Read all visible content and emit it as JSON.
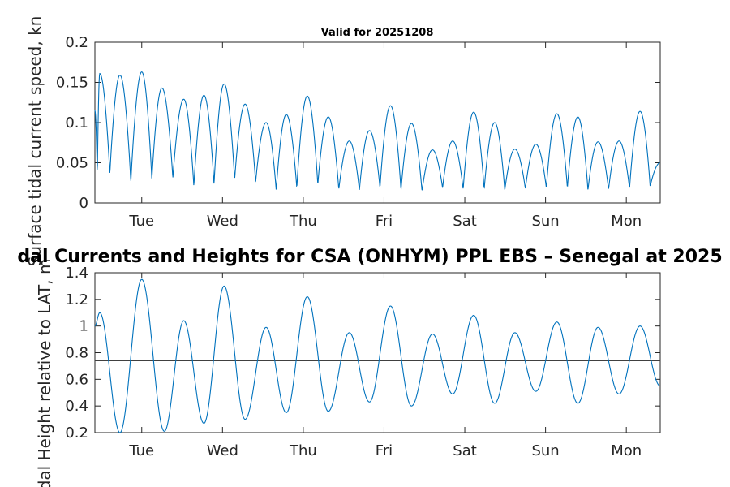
{
  "figure_title": "dal Currents and Heights for CSA (ONHYM) PPL EBS  – Senegal at 2025",
  "chart_data": [
    {
      "id": "speed",
      "type": "line",
      "title": "Valid for 20251208",
      "xlabel": "",
      "ylabel": "Surface tidal current speed, kn",
      "ylim": [
        0,
        0.2
      ],
      "yticks": [
        "0",
        "0.05",
        "0.1",
        "0.15",
        "0.2"
      ],
      "ytick_values": [
        0,
        0.05,
        0.1,
        0.15,
        0.2
      ],
      "xlim_days": [
        0,
        7
      ],
      "xtick_days": [
        0.58,
        1.58,
        2.58,
        3.58,
        4.58,
        5.58,
        6.58
      ],
      "xticks": [
        "Tue",
        "Wed",
        "Thu",
        "Fri",
        "Sat",
        "Sun",
        "Mon"
      ],
      "color": "#0072BD",
      "series": [
        {
          "name": "current speed",
          "x": [
            0.0,
            0.06,
            0.31,
            0.58,
            0.83,
            1.1,
            1.35,
            1.6,
            1.86,
            2.12,
            2.37,
            2.63,
            2.89,
            3.15,
            3.4,
            3.66,
            3.92,
            4.18,
            4.43,
            4.69,
            4.95,
            5.2,
            5.46,
            5.72,
            5.98,
            6.23,
            6.49,
            6.75,
            7.0
          ],
          "y": [
            0.115,
            0.161,
            0.159,
            0.163,
            0.143,
            0.129,
            0.134,
            0.148,
            0.123,
            0.1,
            0.11,
            0.133,
            0.107,
            0.077,
            0.09,
            0.121,
            0.099,
            0.066,
            0.077,
            0.113,
            0.1,
            0.067,
            0.073,
            0.111,
            0.107,
            0.076,
            0.077,
            0.114,
            0.05
          ],
          "minima": [
            0.03,
            0.035,
            0.025,
            0.028,
            0.03,
            0.02,
            0.022,
            0.028,
            0.025,
            0.015,
            0.018,
            0.022,
            0.016,
            0.015,
            0.018,
            0.015,
            0.014,
            0.018,
            0.016,
            0.016,
            0.015,
            0.017,
            0.018,
            0.018,
            0.015,
            0.016,
            0.017,
            0.02
          ]
        }
      ]
    },
    {
      "id": "height",
      "type": "line",
      "title": "",
      "xlabel": "",
      "ylabel": "Tidal Height relative to LAT, m",
      "ylim": [
        0.2,
        1.4
      ],
      "yticks": [
        "0.2",
        "0.4",
        "0.6",
        "0.8",
        "1",
        "1.2",
        "1.4"
      ],
      "ytick_values": [
        0.2,
        0.4,
        0.6,
        0.8,
        1.0,
        1.2,
        1.4
      ],
      "xlim_days": [
        0,
        7
      ],
      "xtick_days": [
        0.58,
        1.58,
        2.58,
        3.58,
        4.58,
        5.58,
        6.58
      ],
      "xticks": [
        "Tue",
        "Wed",
        "Thu",
        "Fri",
        "Sat",
        "Sun",
        "Mon"
      ],
      "color": "#0072BD",
      "reference_line": 0.74,
      "reference_color": "#404040",
      "series": [
        {
          "name": "tidal height",
          "extrema_x": [
            0.0,
            0.06,
            0.31,
            0.58,
            0.86,
            1.1,
            1.35,
            1.6,
            1.86,
            2.12,
            2.37,
            2.63,
            2.89,
            3.15,
            3.4,
            3.66,
            3.92,
            4.18,
            4.43,
            4.69,
            4.95,
            5.2,
            5.46,
            5.72,
            5.98,
            6.23,
            6.49,
            6.75,
            7.0
          ],
          "extrema_y": [
            1.0,
            1.1,
            0.2,
            1.35,
            0.21,
            1.04,
            0.27,
            1.3,
            0.3,
            0.99,
            0.35,
            1.22,
            0.36,
            0.95,
            0.43,
            1.15,
            0.4,
            0.94,
            0.49,
            1.08,
            0.42,
            0.95,
            0.51,
            1.03,
            0.42,
            0.99,
            0.49,
            1.0,
            0.55
          ]
        }
      ]
    }
  ]
}
